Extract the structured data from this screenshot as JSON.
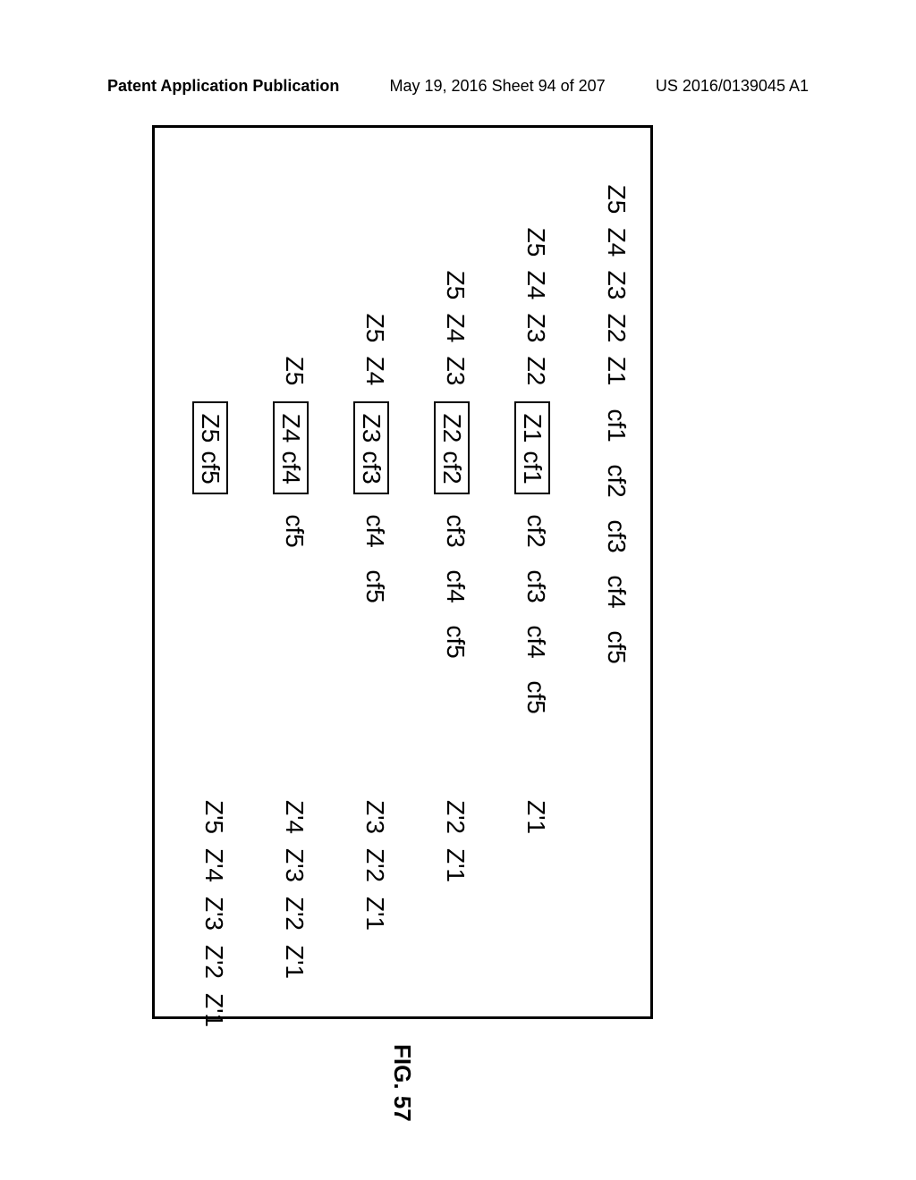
{
  "header": {
    "left": "Patent Application Publication",
    "center": "May 19, 2016  Sheet 94 of 207",
    "right": "US 2016/0139045 A1"
  },
  "figure_label": "FIG. 57",
  "rows": [
    {
      "z_left": [
        "Z5",
        "Z4",
        "Z3",
        "Z2",
        "Z1"
      ],
      "box": null,
      "cf_right": [
        "cf1",
        "cf2",
        "cf3",
        "cf4",
        "cf5"
      ],
      "zp_right": []
    },
    {
      "z_left": [
        "Z5",
        "Z4",
        "Z3",
        "Z2"
      ],
      "box": [
        "Z1",
        "cf1"
      ],
      "cf_right": [
        "cf2",
        "cf3",
        "cf4",
        "cf5"
      ],
      "zp_right": [
        "Z'1"
      ]
    },
    {
      "z_left": [
        "Z5",
        "Z4",
        "Z3"
      ],
      "box": [
        "Z2",
        "cf2"
      ],
      "cf_right": [
        "cf3",
        "cf4",
        "cf5"
      ],
      "zp_right": [
        "Z'2",
        "Z'1"
      ]
    },
    {
      "z_left": [
        "Z5",
        "Z4"
      ],
      "box": [
        "Z3",
        "cf3"
      ],
      "cf_right": [
        "cf4",
        "cf5"
      ],
      "zp_right": [
        "Z'3",
        "Z'2",
        "Z'1"
      ]
    },
    {
      "z_left": [
        "Z5"
      ],
      "box": [
        "Z4",
        "cf4"
      ],
      "cf_right": [
        "cf5"
      ],
      "zp_right": [
        "Z'4",
        "Z'3",
        "Z'2",
        "Z'1"
      ]
    },
    {
      "z_left": [],
      "box": [
        "Z5",
        "cf5"
      ],
      "cf_right": [],
      "zp_right": [
        "Z'5",
        "Z'4",
        "Z'3",
        "Z'2",
        "Z'1"
      ]
    }
  ],
  "layout": {
    "row_top_start": 22,
    "row_spacing": 90,
    "z_slot_width": 48,
    "z_left_anchor": 28,
    "box_anchor": 282,
    "cf_anchor_after_box": 400,
    "cf_anchor_no_box_row0": 282,
    "zp_anchor": 720
  },
  "colors": {
    "fg": "#000000",
    "bg": "#ffffff"
  }
}
